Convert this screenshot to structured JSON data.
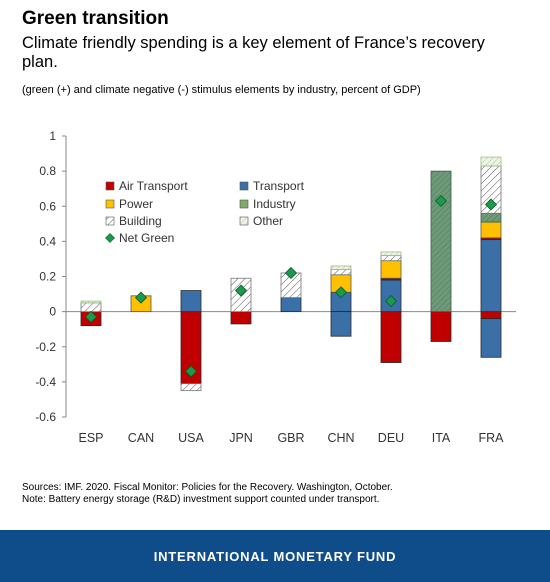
{
  "header": {
    "title": "Green transition",
    "subtitle": "Climate friendly spending is a key element of France’s recovery plan.",
    "note": "(green (+) and climate negative (-) stimulus elements by industry, percent of GDP)"
  },
  "sources": {
    "line1": "Sources: IMF. 2020. Fiscal Monitor: Policies for the Recovery. Washington, October.",
    "line2": "Note: Battery energy storage (R&D) investment support counted under transport."
  },
  "footer": {
    "label": "INTERNATIONAL MONETARY FUND"
  },
  "chart_data": {
    "type": "bar",
    "stacked": true,
    "categories": [
      "ESP",
      "CAN",
      "USA",
      "JPN",
      "GBR",
      "CHN",
      "DEU",
      "ITA",
      "FRA"
    ],
    "ylim": [
      -0.6,
      1.0
    ],
    "yticks": [
      -0.6,
      -0.4,
      -0.2,
      0,
      0.2,
      0.4,
      0.6,
      0.8,
      1
    ],
    "ytick_labels": [
      "-0.6",
      "-0.4",
      "-0.2",
      "0",
      "0.2",
      "0.4",
      "0.6",
      "0.8",
      "1"
    ],
    "grid": false,
    "legend_position": "top-left",
    "colors": {
      "air_transport": "#c00000",
      "transport": "#3b6fa8",
      "power": "#ffc000",
      "industry": "#7fad69",
      "building": "#ffffff",
      "other": "#e4eedb",
      "net_green": "#1a9a4a"
    },
    "series": [
      {
        "key": "air_transport",
        "name": "Air Transport",
        "values": [
          -0.08,
          0,
          -0.41,
          -0.07,
          0,
          0,
          -0.29,
          -0.17,
          -0.04
        ]
      },
      {
        "key": "transport",
        "name": "Transport",
        "values": [
          0,
          0,
          0.12,
          0,
          0.08,
          0.11,
          0.18,
          0,
          0.41
        ]
      },
      {
        "key": "transport_neg",
        "name": "",
        "values": [
          0,
          0,
          0,
          0,
          0,
          -0.14,
          0,
          0,
          -0.22
        ]
      },
      {
        "key": "air_transport_pos",
        "name": "",
        "values": [
          0,
          0,
          0,
          0,
          0,
          0,
          0.01,
          0,
          0.01
        ]
      },
      {
        "key": "power",
        "name": "Power",
        "values": [
          0,
          0.09,
          0,
          0,
          0,
          0.1,
          0.1,
          0,
          0.09
        ]
      },
      {
        "key": "industry",
        "name": "Industry",
        "values": [
          0,
          0,
          0,
          0,
          0,
          0,
          0,
          0.8,
          0.05
        ]
      },
      {
        "key": "building",
        "name": "Building",
        "values": [
          0.05,
          0,
          0,
          0.19,
          0.14,
          0.03,
          0.03,
          0,
          0.27
        ]
      },
      {
        "key": "building_neg",
        "name": "",
        "values": [
          0,
          0,
          -0.04,
          0,
          0,
          0,
          0,
          0,
          0
        ]
      },
      {
        "key": "other",
        "name": "Other",
        "values": [
          0.01,
          0,
          0,
          0,
          0,
          0.02,
          0.02,
          0,
          0.05
        ]
      }
    ],
    "net_green": {
      "name": "Net Green",
      "values": [
        -0.03,
        0.08,
        -0.34,
        0.12,
        0.22,
        0.11,
        0.06,
        0.63,
        0.61
      ]
    },
    "legend": [
      {
        "key": "air_transport",
        "label": "Air Transport"
      },
      {
        "key": "transport",
        "label": "Transport"
      },
      {
        "key": "power",
        "label": "Power"
      },
      {
        "key": "industry",
        "label": "Industry"
      },
      {
        "key": "building",
        "label": "Building"
      },
      {
        "key": "other",
        "label": "Other"
      },
      {
        "key": "net_green",
        "label": "Net Green"
      }
    ]
  }
}
